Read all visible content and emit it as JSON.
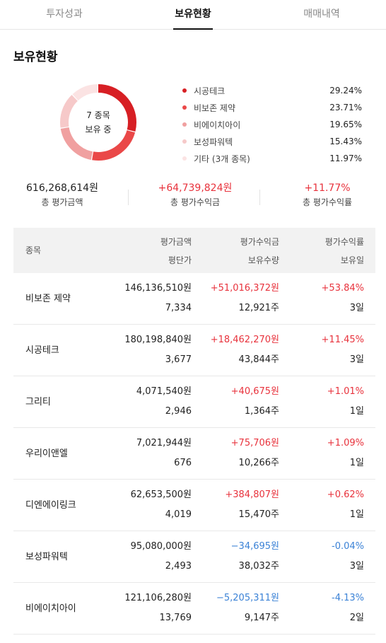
{
  "tabs": [
    {
      "label": "투자성과"
    },
    {
      "label": "보유현황"
    },
    {
      "label": "매매내역"
    }
  ],
  "section_title": "보유현황",
  "donut": {
    "line1": "7 종목",
    "line2": "보유 중",
    "segments": [
      {
        "name": "시공테크",
        "pct": 29.24,
        "color": "#d71f24"
      },
      {
        "name": "비보존 제약",
        "pct": 23.71,
        "color": "#ea4848"
      },
      {
        "name": "비에이치아이",
        "pct": 19.65,
        "color": "#f0a0a0"
      },
      {
        "name": "보성파워텍",
        "pct": 15.43,
        "color": "#f6c9c9"
      },
      {
        "name": "기타 (3개 종목)",
        "pct": 11.97,
        "color": "#fbe3e3"
      }
    ]
  },
  "legend": [
    {
      "name": "시공테크",
      "pct": "29.24%",
      "color": "#d71f24"
    },
    {
      "name": "비보존 제약",
      "pct": "23.71%",
      "color": "#ea4848"
    },
    {
      "name": "비에이치아이",
      "pct": "19.65%",
      "color": "#f0a0a0"
    },
    {
      "name": "보성파워텍",
      "pct": "15.43%",
      "color": "#f6c9c9"
    },
    {
      "name": "기타 (3개 종목)",
      "pct": "11.97%",
      "color": "#fbe3e3"
    }
  ],
  "summary": {
    "total_value": "616,268,614원",
    "total_value_label": "총 평가금액",
    "total_gain": "+64,739,824원",
    "total_gain_label": "총 평가수익금",
    "total_rate": "+11.77%",
    "total_rate_label": "총 평가수익률"
  },
  "table": {
    "headers": {
      "name": "종목",
      "amount": "평가금액",
      "avg_price": "평단가",
      "gain": "평가수익금",
      "qty": "보유수량",
      "rate": "평가수익률",
      "days": "보유일"
    },
    "rows": [
      {
        "name": "비보존 제약",
        "amount": "146,136,510원",
        "avg_price": "7,334",
        "gain": "+51,016,372원",
        "qty": "12,921주",
        "rate": "+53.84%",
        "days": "3일",
        "trend": "up"
      },
      {
        "name": "시공테크",
        "amount": "180,198,840원",
        "avg_price": "3,677",
        "gain": "+18,462,270원",
        "qty": "43,844주",
        "rate": "+11.45%",
        "days": "3일",
        "trend": "up"
      },
      {
        "name": "그리티",
        "amount": "4,071,540원",
        "avg_price": "2,946",
        "gain": "+40,675원",
        "qty": "1,364주",
        "rate": "+1.01%",
        "days": "1일",
        "trend": "up"
      },
      {
        "name": "우리이앤엘",
        "amount": "7,021,944원",
        "avg_price": "676",
        "gain": "+75,706원",
        "qty": "10,266주",
        "rate": "+1.09%",
        "days": "1일",
        "trend": "up"
      },
      {
        "name": "디엔에이링크",
        "amount": "62,653,500원",
        "avg_price": "4,019",
        "gain": "+384,807원",
        "qty": "15,470주",
        "rate": "+0.62%",
        "days": "1일",
        "trend": "up"
      },
      {
        "name": "보성파워텍",
        "amount": "95,080,000원",
        "avg_price": "2,493",
        "gain": "−34,695원",
        "qty": "38,032주",
        "rate": "-0.04%",
        "days": "3일",
        "trend": "down"
      },
      {
        "name": "비에이치아이",
        "amount": "121,106,280원",
        "avg_price": "13,769",
        "gain": "−5,205,311원",
        "qty": "9,147주",
        "rate": "-4.13%",
        "days": "2일",
        "trend": "down"
      }
    ]
  },
  "colors": {
    "up": "#e8323c",
    "down": "#3b82d6"
  }
}
